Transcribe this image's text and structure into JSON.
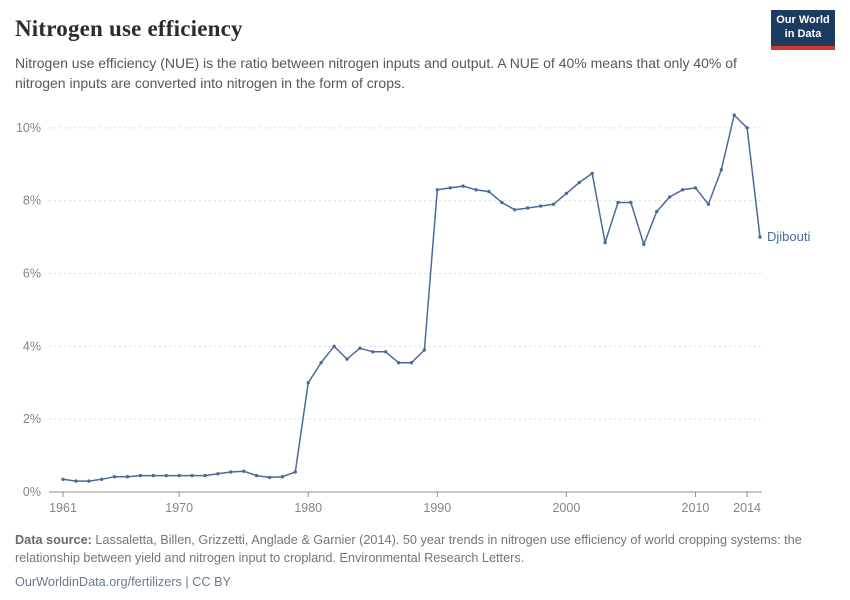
{
  "header": {
    "title": "Nitrogen use efficiency",
    "subtitle": "Nitrogen use efficiency (NUE) is the ratio between nitrogen inputs and output. A NUE of 40% means that only 40% of nitrogen inputs are converted into nitrogen in the form of crops.",
    "logo": {
      "line1": "Our World",
      "line2": "in Data"
    }
  },
  "chart_data": {
    "type": "line",
    "title": "Nitrogen use efficiency",
    "xlabel": "",
    "ylabel": "",
    "grid": "horizontal-dashed",
    "legend_position": "end-of-line-label",
    "xlim": [
      1961,
      2015
    ],
    "ylim": [
      0,
      10.6
    ],
    "x_ticks": [
      1961,
      1970,
      1980,
      1990,
      2000,
      2010,
      2014
    ],
    "y_ticks": [
      "0%",
      "2%",
      "4%",
      "6%",
      "8%",
      "10%"
    ],
    "y_tick_values": [
      0,
      2,
      4,
      6,
      8,
      10
    ],
    "series": [
      {
        "name": "Djibouti",
        "color": "#4c6a9c",
        "x": [
          1961,
          1962,
          1963,
          1964,
          1965,
          1966,
          1967,
          1968,
          1969,
          1970,
          1971,
          1972,
          1973,
          1974,
          1975,
          1976,
          1977,
          1978,
          1979,
          1980,
          1981,
          1982,
          1983,
          1984,
          1985,
          1986,
          1987,
          1988,
          1989,
          1990,
          1991,
          1992,
          1993,
          1994,
          1995,
          1996,
          1997,
          1998,
          1999,
          2000,
          2001,
          2002,
          2003,
          2004,
          2005,
          2006,
          2007,
          2008,
          2009,
          2010,
          2011,
          2012,
          2013,
          2014,
          2015
        ],
        "values": [
          0.35,
          0.3,
          0.3,
          0.35,
          0.42,
          0.42,
          0.45,
          0.45,
          0.45,
          0.45,
          0.45,
          0.45,
          0.5,
          0.55,
          0.57,
          0.45,
          0.4,
          0.42,
          0.55,
          3.0,
          3.55,
          4.0,
          3.65,
          3.95,
          3.85,
          3.85,
          3.55,
          3.55,
          3.9,
          8.3,
          8.35,
          8.4,
          8.3,
          8.25,
          7.95,
          7.75,
          7.8,
          7.85,
          7.9,
          8.2,
          8.5,
          8.75,
          6.85,
          7.95,
          7.95,
          6.8,
          7.7,
          8.1,
          8.3,
          8.35,
          7.9,
          8.85,
          10.35,
          10.0,
          7.0
        ]
      }
    ]
  },
  "footer": {
    "source_label": "Data source:",
    "source_text": " Lassaletta, Billen, Grizzetti, Anglade & Garnier (2014). 50 year trends in nitrogen use efficiency of world cropping systems: the relationship between yield and nitrogen input to cropland. Environmental Research Letters.",
    "license": "OurWorldinData.org/fertilizers | CC BY"
  },
  "colors": {
    "line": "#4c6a9c",
    "axis": "#8f8f8f",
    "gridline": "#dadde2",
    "tick_label": "#858585",
    "logo_bg": "#1d3a5f",
    "logo_accent": "#d0392e"
  }
}
